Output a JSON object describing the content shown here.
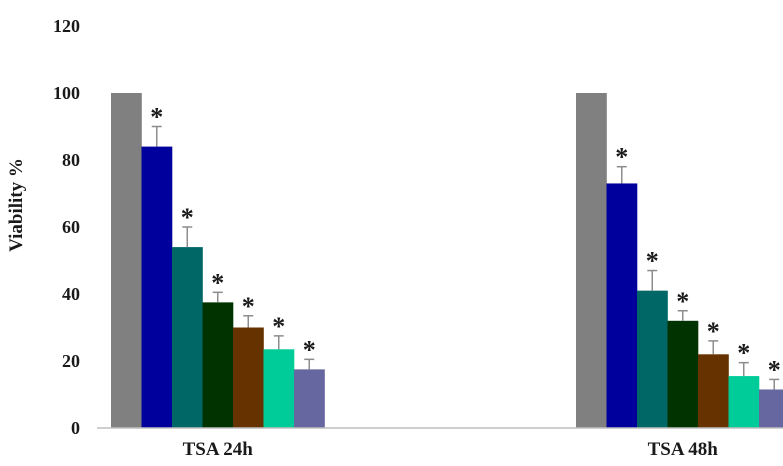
{
  "chart_data": {
    "type": "bar",
    "title": "",
    "xlabel": "",
    "ylabel": "Viability %",
    "ylim": [
      0,
      120
    ],
    "yticks": [
      0,
      20,
      40,
      60,
      80,
      100,
      120
    ],
    "grid": false,
    "categories": [
      "TSA 24h",
      "TSA 48h"
    ],
    "series": [
      {
        "color": "#808080",
        "values": [
          100,
          100
        ],
        "errors": [
          0,
          0
        ],
        "significant": [
          false,
          false
        ]
      },
      {
        "color": "#00009c",
        "values": [
          84,
          73
        ],
        "errors": [
          6,
          5
        ],
        "significant": [
          true,
          true
        ]
      },
      {
        "color": "#006666",
        "values": [
          54,
          41
        ],
        "errors": [
          6,
          6
        ],
        "significant": [
          true,
          true
        ]
      },
      {
        "color": "#003300",
        "values": [
          37.5,
          32
        ],
        "errors": [
          3,
          3
        ],
        "significant": [
          true,
          true
        ]
      },
      {
        "color": "#663300",
        "values": [
          30,
          22
        ],
        "errors": [
          3.5,
          4
        ],
        "significant": [
          true,
          true
        ]
      },
      {
        "color": "#00cc99",
        "values": [
          23.5,
          15.5
        ],
        "errors": [
          4,
          4
        ],
        "significant": [
          true,
          true
        ]
      },
      {
        "color": "#6666a0",
        "values": [
          17.5,
          11.5
        ],
        "errors": [
          3,
          3
        ],
        "significant": [
          true,
          true
        ]
      }
    ],
    "significance_symbol": "*"
  }
}
